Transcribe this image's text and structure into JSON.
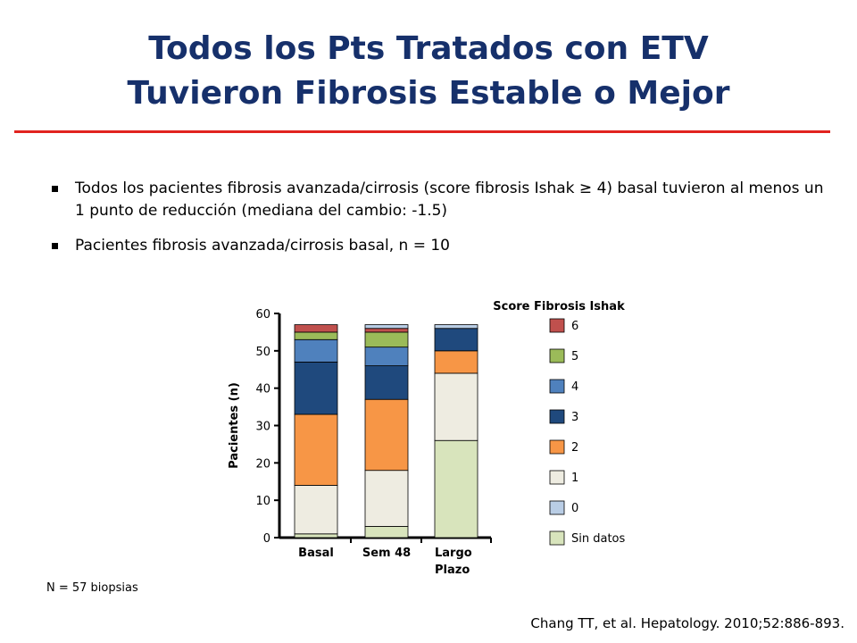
{
  "slide": {
    "title_line1": "Todos los Pts Tratados con ETV",
    "title_line2": "Tuvieron Fibrosis Estable o Mejor",
    "bullets": [
      "Todos los pacientes fibrosis avanzada/cirrosis (score fibrosis Ishak ≥ 4) basal tuvieron al menos un 1 punto de reducción (mediana del cambio: -1.5)",
      "Pacientes fibrosis avanzada/cirrosis basal, n = 10"
    ],
    "note": "N = 57 biopsias",
    "citation": "Chang TT, et al. Hepatology. 2010;52:886-893.",
    "accent_color": "#e1231f",
    "title_color": "#16306b"
  },
  "chart_data": {
    "type": "bar",
    "stacked": true,
    "categories": [
      [
        "Basal"
      ],
      [
        "Sem 48"
      ],
      [
        "Largo",
        "Plazo"
      ]
    ],
    "ylabel": "Pacientes (n)",
    "ylim": [
      0,
      60
    ],
    "yticks": [
      0,
      10,
      20,
      30,
      40,
      50,
      60
    ],
    "legend_title": "Score Fibrosis Ishak",
    "legend_placement": "right",
    "series": [
      {
        "name": "Sin datos",
        "color": "#d8e4bc",
        "values": [
          1,
          3,
          26
        ]
      },
      {
        "name": "0",
        "color": "#b9cde5",
        "values": [
          0,
          0,
          0
        ]
      },
      {
        "name": "1",
        "color": "#eeece1",
        "values": [
          13,
          15,
          18
        ]
      },
      {
        "name": "2",
        "color": "#f79646",
        "values": [
          19,
          19,
          6
        ]
      },
      {
        "name": "3",
        "color": "#1f497d",
        "values": [
          14,
          9,
          6
        ]
      },
      {
        "name": "4",
        "color": "#4f81bd",
        "values": [
          6,
          5,
          0
        ]
      },
      {
        "name": "5",
        "color": "#9bbb59",
        "values": [
          2,
          4,
          0
        ]
      },
      {
        "name": "6",
        "color": "#c0504d",
        "values": [
          2,
          1,
          0
        ]
      },
      {
        "name": "",
        "color": "#b9cde5",
        "values": [
          0,
          1,
          1
        ]
      }
    ]
  }
}
